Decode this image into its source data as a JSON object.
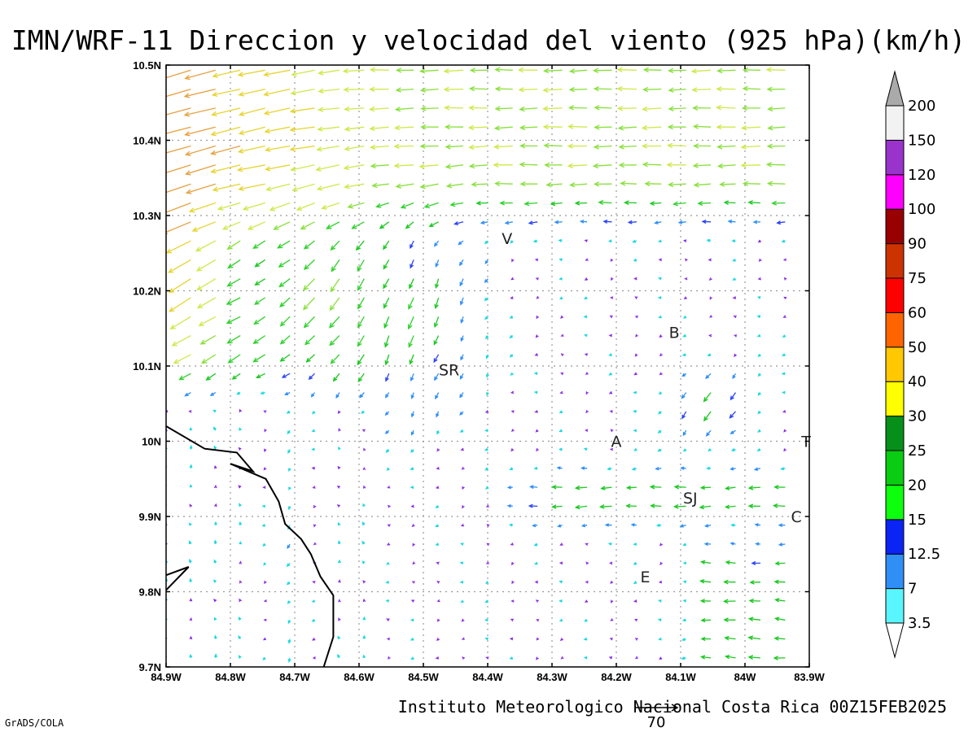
{
  "chart_data": {
    "type": "vector-field",
    "title": "IMN/WRF-11 Direccion y velocidad del viento (925 hPa)(km/h)",
    "footer": "Instituto Meteorologico Nacional Costa Rica 00Z15FEB2025",
    "credit": "GrADS/COLA",
    "xlim": [
      -84.9,
      -83.9
    ],
    "ylim": [
      9.7,
      10.5
    ],
    "x_ticks": [
      {
        "value": -84.9,
        "label": "84.9W"
      },
      {
        "value": -84.8,
        "label": "84.8W"
      },
      {
        "value": -84.7,
        "label": "84.7W"
      },
      {
        "value": -84.6,
        "label": "84.6W"
      },
      {
        "value": -84.5,
        "label": "84.5W"
      },
      {
        "value": -84.4,
        "label": "84.4W"
      },
      {
        "value": -84.3,
        "label": "84.3W"
      },
      {
        "value": -84.2,
        "label": "84.2W"
      },
      {
        "value": -84.1,
        "label": "84.1W"
      },
      {
        "value": -84.0,
        "label": "84W"
      },
      {
        "value": -83.9,
        "label": "83.9W"
      }
    ],
    "y_ticks": [
      {
        "value": 9.7,
        "label": "9.7N"
      },
      {
        "value": 9.8,
        "label": "9.8N"
      },
      {
        "value": 9.9,
        "label": "9.9N"
      },
      {
        "value": 10.0,
        "label": "10N"
      },
      {
        "value": 10.1,
        "label": "10.1N"
      },
      {
        "value": 10.2,
        "label": "10.2N"
      },
      {
        "value": 10.3,
        "label": "10.3N"
      },
      {
        "value": 10.4,
        "label": "10.4N"
      },
      {
        "value": 10.5,
        "label": "10.5N"
      }
    ],
    "grid": true,
    "cities": [
      {
        "label": "V",
        "lon": -84.37,
        "lat": 10.27
      },
      {
        "label": "SR",
        "lon": -84.46,
        "lat": 10.095
      },
      {
        "label": "B",
        "lon": -84.11,
        "lat": 10.145
      },
      {
        "label": "A",
        "lon": -84.2,
        "lat": 10.0
      },
      {
        "label": "SJ",
        "lon": -84.085,
        "lat": 9.925
      },
      {
        "label": "C",
        "lon": -83.92,
        "lat": 9.9
      },
      {
        "label": "E",
        "lon": -84.155,
        "lat": 9.82
      },
      {
        "label": "T",
        "lon": -83.905,
        "lat": 10.0
      }
    ],
    "coastline": [
      [
        -84.9,
        10.02
      ],
      [
        -84.84,
        9.99
      ],
      [
        -84.79,
        9.985
      ],
      [
        -84.765,
        9.96
      ],
      [
        -84.8,
        9.97
      ],
      [
        -84.745,
        9.95
      ],
      [
        -84.725,
        9.92
      ],
      [
        -84.715,
        9.89
      ],
      [
        -84.69,
        9.87
      ],
      [
        -84.675,
        9.85
      ],
      [
        -84.66,
        9.82
      ],
      [
        -84.64,
        9.795
      ],
      [
        -84.64,
        9.74
      ],
      [
        -84.655,
        9.7
      ]
    ],
    "coastline2": [
      [
        -84.9,
        9.822
      ],
      [
        -84.865,
        9.833
      ],
      [
        -84.9,
        9.802
      ]
    ],
    "colorbar": {
      "levels": [
        "3.5",
        "7",
        "12.5",
        "15",
        "20",
        "25",
        "30",
        "40",
        "50",
        "60",
        "75",
        "90",
        "100",
        "120",
        "150",
        "200"
      ],
      "colors": [
        "#ffffff",
        "#5af6ff",
        "#2f8ff7",
        "#0a24f5",
        "#0dff0d",
        "#0acc12",
        "#06901a",
        "#ffff00",
        "#ffc800",
        "#ff6400",
        "#ff0000",
        "#cc3300",
        "#990000",
        "#ff00ff",
        "#9933cc",
        "#f2f2f2",
        "#aaaaaa"
      ]
    },
    "reference_vector": {
      "value": "70"
    }
  }
}
